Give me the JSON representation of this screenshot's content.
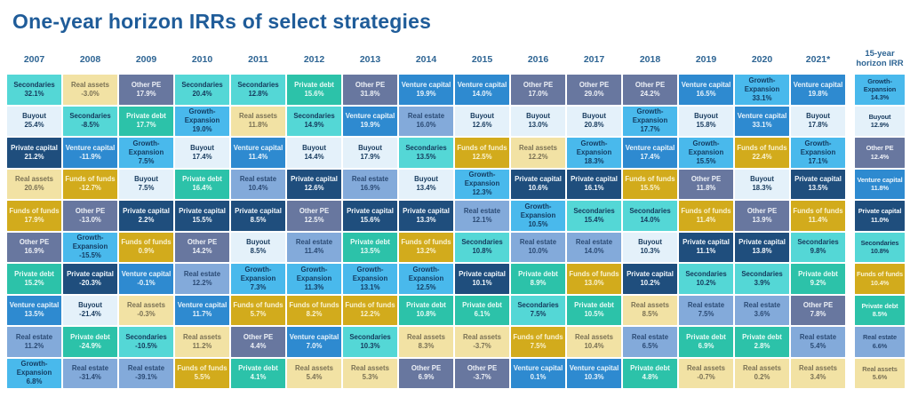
{
  "title": "One-year horizon IRRs of select strategies",
  "title_color": "#1f5c99",
  "chart_data": {
    "type": "heatmap",
    "title": "One-year horizon IRRs of select strategies",
    "value_unit": "%",
    "legend_position": "none",
    "row_meaning": "strategies ranked by one-year horizon IRR, best to worst, per column",
    "palette": {
      "Secondaries": {
        "bg": "#54d7d6",
        "text": "#15395c"
      },
      "Buyout": {
        "bg": "#e4f1fa",
        "text": "#1a3d60"
      },
      "Private capital": {
        "bg": "#1f4e7d",
        "text": "#f2f7fc"
      },
      "Real assets": {
        "bg": "#f2e2a4",
        "text": "#7a7154"
      },
      "Funds of funds": {
        "bg": "#d2ab1c",
        "text": "#faf3d2"
      },
      "Other PE": {
        "bg": "#68779f",
        "text": "#eef1f7"
      },
      "Private debt": {
        "bg": "#2cc2a9",
        "text": "#e9fbf6"
      },
      "Venture capital": {
        "bg": "#2e8ad0",
        "text": "#e8f3fb"
      },
      "Growth-Expansion": {
        "bg": "#49b9ec",
        "text": "#143c62"
      },
      "Real estate": {
        "bg": "#83aada",
        "text": "#2b4a74"
      }
    },
    "columns": [
      {
        "year": "2007",
        "cells": [
          {
            "s": "Secondaries",
            "v": "32.1%"
          },
          {
            "s": "Buyout",
            "v": "25.4%"
          },
          {
            "s": "Private capital",
            "v": "21.2%"
          },
          {
            "s": "Real assets",
            "v": "20.6%"
          },
          {
            "s": "Funds of funds",
            "v": "17.9%"
          },
          {
            "s": "Other PE",
            "v": "16.9%"
          },
          {
            "s": "Private debt",
            "v": "15.2%"
          },
          {
            "s": "Venture capital",
            "v": "13.5%"
          },
          {
            "s": "Real estate",
            "v": "11.2%"
          },
          {
            "s": "Growth-Expansion",
            "v": "6.8%"
          }
        ]
      },
      {
        "year": "2008",
        "cells": [
          {
            "s": "Real assets",
            "v": "-3.0%"
          },
          {
            "s": "Secondaries",
            "v": "-8.5%"
          },
          {
            "s": "Venture capital",
            "v": "-11.9%"
          },
          {
            "s": "Funds of funds",
            "v": "-12.7%"
          },
          {
            "s": "Other PE",
            "v": "-13.0%"
          },
          {
            "s": "Growth-Expansion",
            "v": "-15.5%"
          },
          {
            "s": "Private capital",
            "v": "-20.3%"
          },
          {
            "s": "Buyout",
            "v": "-21.4%"
          },
          {
            "s": "Private debt",
            "v": "-24.9%"
          },
          {
            "s": "Real estate",
            "v": "-31.4%"
          }
        ]
      },
      {
        "year": "2009",
        "cells": [
          {
            "s": "Other PE",
            "v": "17.9%"
          },
          {
            "s": "Private debt",
            "v": "17.7%"
          },
          {
            "s": "Growth-Expansion",
            "v": "7.5%"
          },
          {
            "s": "Buyout",
            "v": "7.5%"
          },
          {
            "s": "Private capital",
            "v": "2.2%"
          },
          {
            "s": "Funds of funds",
            "v": "0.9%"
          },
          {
            "s": "Venture capital",
            "v": "-0.1%"
          },
          {
            "s": "Real assets",
            "v": "-0.3%"
          },
          {
            "s": "Secondaries",
            "v": "-10.5%"
          },
          {
            "s": "Real estate",
            "v": "-39.1%"
          }
        ]
      },
      {
        "year": "2010",
        "cells": [
          {
            "s": "Secondaries",
            "v": "20.4%"
          },
          {
            "s": "Growth-Expansion",
            "v": "19.0%"
          },
          {
            "s": "Buyout",
            "v": "17.4%"
          },
          {
            "s": "Private debt",
            "v": "16.4%"
          },
          {
            "s": "Private capital",
            "v": "15.5%"
          },
          {
            "s": "Other PE",
            "v": "14.2%"
          },
          {
            "s": "Real estate",
            "v": "12.2%"
          },
          {
            "s": "Venture capital",
            "v": "11.7%"
          },
          {
            "s": "Real assets",
            "v": "11.2%"
          },
          {
            "s": "Funds of funds",
            "v": "5.5%"
          }
        ]
      },
      {
        "year": "2011",
        "cells": [
          {
            "s": "Secondaries",
            "v": "12.8%"
          },
          {
            "s": "Real assets",
            "v": "11.8%"
          },
          {
            "s": "Venture capital",
            "v": "11.4%"
          },
          {
            "s": "Real estate",
            "v": "10.4%"
          },
          {
            "s": "Private capital",
            "v": "8.5%"
          },
          {
            "s": "Buyout",
            "v": "8.5%"
          },
          {
            "s": "Growth-Expansion",
            "v": "7.3%"
          },
          {
            "s": "Funds of funds",
            "v": "5.7%"
          },
          {
            "s": "Other PE",
            "v": "4.4%"
          },
          {
            "s": "Private debt",
            "v": "4.1%"
          }
        ]
      },
      {
        "year": "2012",
        "cells": [
          {
            "s": "Private debt",
            "v": "15.6%"
          },
          {
            "s": "Secondaries",
            "v": "14.9%"
          },
          {
            "s": "Buyout",
            "v": "14.4%"
          },
          {
            "s": "Private capital",
            "v": "12.6%"
          },
          {
            "s": "Other PE",
            "v": "12.5%"
          },
          {
            "s": "Real estate",
            "v": "11.4%"
          },
          {
            "s": "Growth-Expansion",
            "v": "11.3%"
          },
          {
            "s": "Funds of funds",
            "v": "8.2%"
          },
          {
            "s": "Venture capital",
            "v": "7.0%"
          },
          {
            "s": "Real assets",
            "v": "5.4%"
          }
        ]
      },
      {
        "year": "2013",
        "cells": [
          {
            "s": "Other PE",
            "v": "31.8%"
          },
          {
            "s": "Venture capital",
            "v": "19.9%"
          },
          {
            "s": "Buyout",
            "v": "17.9%"
          },
          {
            "s": "Real estate",
            "v": "16.9%"
          },
          {
            "s": "Private capital",
            "v": "15.6%"
          },
          {
            "s": "Private debt",
            "v": "13.5%"
          },
          {
            "s": "Growth-Expansion",
            "v": "13.1%"
          },
          {
            "s": "Funds of funds",
            "v": "12.2%"
          },
          {
            "s": "Secondaries",
            "v": "10.3%"
          },
          {
            "s": "Real assets",
            "v": "5.3%"
          }
        ]
      },
      {
        "year": "2014",
        "cells": [
          {
            "s": "Venture capital",
            "v": "19.9%"
          },
          {
            "s": "Real estate",
            "v": "16.0%"
          },
          {
            "s": "Secondaries",
            "v": "13.5%"
          },
          {
            "s": "Buyout",
            "v": "13.4%"
          },
          {
            "s": "Private capital",
            "v": "13.3%"
          },
          {
            "s": "Funds of funds",
            "v": "13.2%"
          },
          {
            "s": "Growth-Expansion",
            "v": "12.5%"
          },
          {
            "s": "Private debt",
            "v": "10.8%"
          },
          {
            "s": "Real assets",
            "v": "8.3%"
          },
          {
            "s": "Other PE",
            "v": "6.9%"
          }
        ]
      },
      {
        "year": "2015",
        "cells": [
          {
            "s": "Venture capital",
            "v": "14.0%"
          },
          {
            "s": "Buyout",
            "v": "12.6%"
          },
          {
            "s": "Funds of funds",
            "v": "12.5%"
          },
          {
            "s": "Growth-Expansion",
            "v": "12.3%"
          },
          {
            "s": "Real estate",
            "v": "12.1%"
          },
          {
            "s": "Secondaries",
            "v": "10.8%"
          },
          {
            "s": "Private capital",
            "v": "10.1%"
          },
          {
            "s": "Private debt",
            "v": "6.1%"
          },
          {
            "s": "Real assets",
            "v": "-3.7%"
          },
          {
            "s": "Other PE",
            "v": "-3.7%"
          }
        ]
      },
      {
        "year": "2016",
        "cells": [
          {
            "s": "Other PE",
            "v": "17.0%"
          },
          {
            "s": "Buyout",
            "v": "13.0%"
          },
          {
            "s": "Real assets",
            "v": "12.2%"
          },
          {
            "s": "Private capital",
            "v": "10.6%"
          },
          {
            "s": "Growth-Expansion",
            "v": "10.5%"
          },
          {
            "s": "Real estate",
            "v": "10.0%"
          },
          {
            "s": "Private debt",
            "v": "8.9%"
          },
          {
            "s": "Secondaries",
            "v": "7.5%"
          },
          {
            "s": "Funds of funds",
            "v": "7.5%"
          },
          {
            "s": "Venture capital",
            "v": "0.1%"
          }
        ]
      },
      {
        "year": "2017",
        "cells": [
          {
            "s": "Other PE",
            "v": "29.0%"
          },
          {
            "s": "Buyout",
            "v": "20.8%"
          },
          {
            "s": "Growth-Expansion",
            "v": "18.3%"
          },
          {
            "s": "Private capital",
            "v": "16.1%"
          },
          {
            "s": "Secondaries",
            "v": "15.4%"
          },
          {
            "s": "Real estate",
            "v": "14.0%"
          },
          {
            "s": "Funds of funds",
            "v": "13.0%"
          },
          {
            "s": "Private debt",
            "v": "10.5%"
          },
          {
            "s": "Real assets",
            "v": "10.4%"
          },
          {
            "s": "Venture capital",
            "v": "10.3%"
          }
        ]
      },
      {
        "year": "2018",
        "cells": [
          {
            "s": "Other PE",
            "v": "24.2%"
          },
          {
            "s": "Growth-Expansion",
            "v": "17.7%"
          },
          {
            "s": "Venture capital",
            "v": "17.4%"
          },
          {
            "s": "Funds of funds",
            "v": "15.5%"
          },
          {
            "s": "Secondaries",
            "v": "14.0%"
          },
          {
            "s": "Buyout",
            "v": "10.3%"
          },
          {
            "s": "Private capital",
            "v": "10.2%"
          },
          {
            "s": "Real assets",
            "v": "8.5%"
          },
          {
            "s": "Real estate",
            "v": "6.5%"
          },
          {
            "s": "Private debt",
            "v": "4.8%"
          }
        ]
      },
      {
        "year": "2019",
        "cells": [
          {
            "s": "Venture capital",
            "v": "16.5%"
          },
          {
            "s": "Buyout",
            "v": "15.8%"
          },
          {
            "s": "Growth-Expansion",
            "v": "15.5%"
          },
          {
            "s": "Other PE",
            "v": "11.8%"
          },
          {
            "s": "Funds of funds",
            "v": "11.4%"
          },
          {
            "s": "Private capital",
            "v": "11.1%"
          },
          {
            "s": "Secondaries",
            "v": "10.2%"
          },
          {
            "s": "Real estate",
            "v": "7.5%"
          },
          {
            "s": "Private debt",
            "v": "6.9%"
          },
          {
            "s": "Real assets",
            "v": "-0.7%"
          }
        ]
      },
      {
        "year": "2020",
        "cells": [
          {
            "s": "Growth-Expansion",
            "v": "33.1%"
          },
          {
            "s": "Venture capital",
            "v": "33.1%"
          },
          {
            "s": "Funds of funds",
            "v": "22.4%"
          },
          {
            "s": "Buyout",
            "v": "18.3%"
          },
          {
            "s": "Other PE",
            "v": "13.9%"
          },
          {
            "s": "Private capital",
            "v": "13.8%"
          },
          {
            "s": "Secondaries",
            "v": "3.9%"
          },
          {
            "s": "Real estate",
            "v": "3.6%"
          },
          {
            "s": "Private debt",
            "v": "2.8%"
          },
          {
            "s": "Real assets",
            "v": "0.2%"
          }
        ]
      },
      {
        "year": "2021*",
        "cells": [
          {
            "s": "Venture capital",
            "v": "19.8%"
          },
          {
            "s": "Buyout",
            "v": "17.8%"
          },
          {
            "s": "Growth-Expansion",
            "v": "17.1%"
          },
          {
            "s": "Private capital",
            "v": "13.5%"
          },
          {
            "s": "Funds of funds",
            "v": "11.4%"
          },
          {
            "s": "Secondaries",
            "v": "9.8%"
          },
          {
            "s": "Private debt",
            "v": "9.2%"
          },
          {
            "s": "Other PE",
            "v": "7.8%"
          },
          {
            "s": "Real estate",
            "v": "5.4%"
          },
          {
            "s": "Real assets",
            "v": "3.4%"
          }
        ]
      },
      {
        "year": "15-year horizon IRR",
        "separated": true,
        "cells": [
          {
            "s": "Growth-Expansion",
            "v": "14.3%"
          },
          {
            "s": "Buyout",
            "v": "12.9%"
          },
          {
            "s": "Other PE",
            "v": "12.4%"
          },
          {
            "s": "Venture capital",
            "v": "11.8%"
          },
          {
            "s": "Private capital",
            "v": "11.0%"
          },
          {
            "s": "Secondaries",
            "v": "10.8%"
          },
          {
            "s": "Funds of funds",
            "v": "10.4%"
          },
          {
            "s": "Private debt",
            "v": "8.5%"
          },
          {
            "s": "Real estate",
            "v": "6.6%"
          },
          {
            "s": "Real assets",
            "v": "5.6%"
          }
        ]
      }
    ]
  }
}
